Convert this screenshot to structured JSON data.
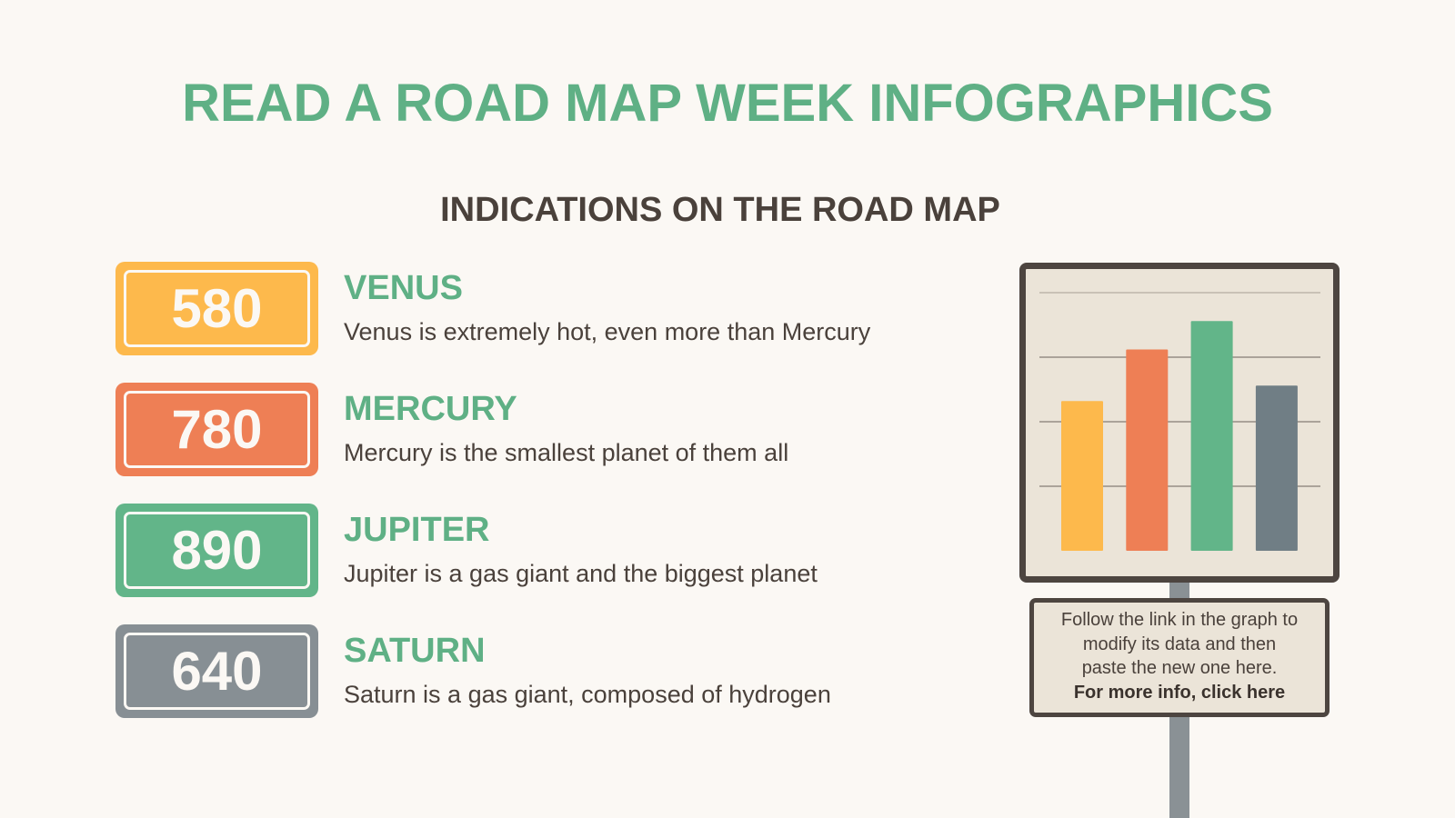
{
  "title": "READ A ROAD MAP WEEK INFOGRAPHICS",
  "subtitle": "INDICATIONS ON THE ROAD MAP",
  "items": [
    {
      "value": "580",
      "name": "VENUS",
      "description": "Venus is extremely hot, even more than Mercury",
      "color": "#fdb94c"
    },
    {
      "value": "780",
      "name": "MERCURY",
      "description": "Mercury is the smallest planet of them all",
      "color": "#ee7f55"
    },
    {
      "value": "890",
      "name": "JUPITER",
      "description": "Jupiter is a gas giant and the biggest planet",
      "color": "#62b589"
    },
    {
      "value": "640",
      "name": "SATURN",
      "description": "Saturn is a gas giant, composed of hydrogen",
      "color": "#878f94"
    }
  ],
  "info": {
    "line1": "Follow the link in the graph to",
    "line2": "modify its data and then",
    "line3": "paste the new one here.",
    "link": "For more info, click here"
  },
  "chart_data": {
    "type": "bar",
    "categories": [
      "Venus",
      "Mercury",
      "Jupiter",
      "Saturn"
    ],
    "values": [
      580,
      780,
      890,
      640
    ],
    "colors": [
      "#fdb94c",
      "#ee7f55",
      "#62b589",
      "#707e85"
    ],
    "ylim": [
      0,
      1000
    ],
    "grid": true
  }
}
